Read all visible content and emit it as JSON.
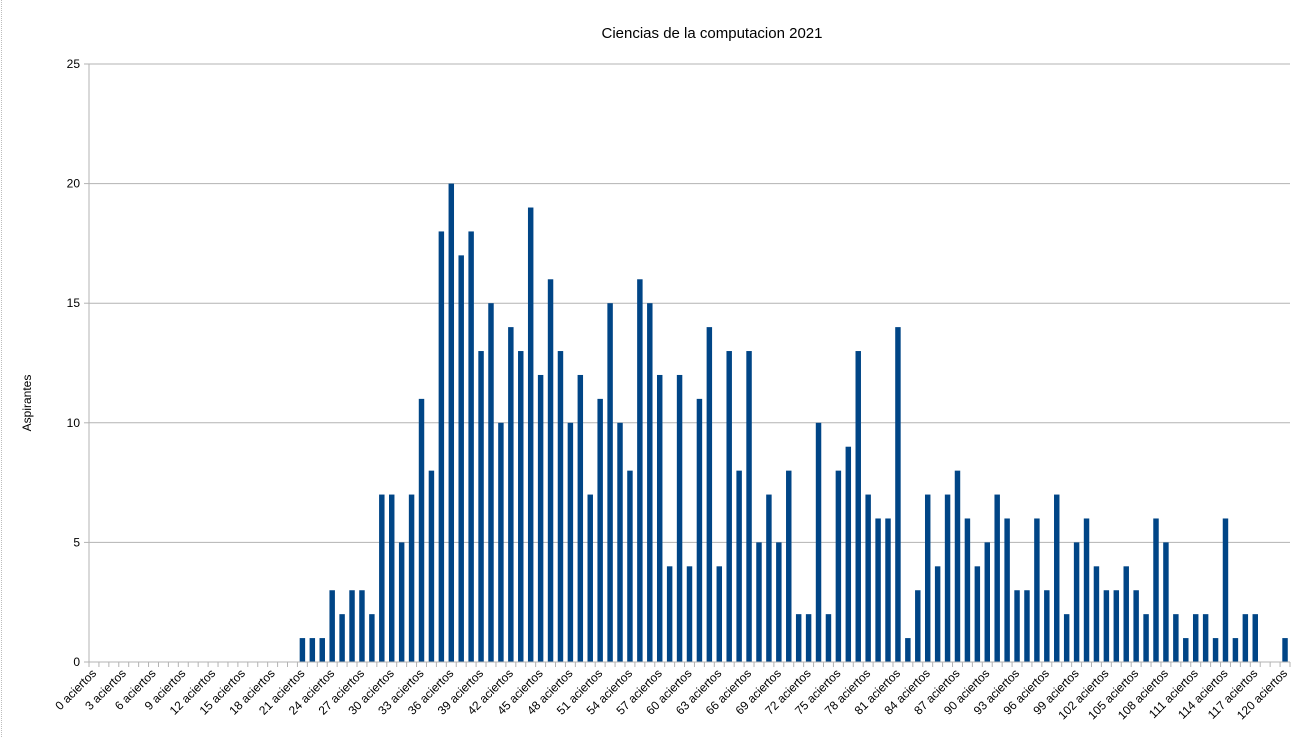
{
  "chart_data": {
    "type": "bar",
    "title": "Ciencias de la computacion 2021",
    "ylabel": "Aspirantes",
    "xlabel": "",
    "ylim": [
      0,
      25
    ],
    "yticks": [
      0,
      5,
      10,
      15,
      20,
      25
    ],
    "grid": true,
    "legend": "none",
    "bar_color": "#004586",
    "categories": [
      "0 aciertos",
      "1 aciertos",
      "2 aciertos",
      "3 aciertos",
      "4 aciertos",
      "5 aciertos",
      "6 aciertos",
      "7 aciertos",
      "8 aciertos",
      "9 aciertos",
      "10 aciertos",
      "11 aciertos",
      "12 aciertos",
      "13 aciertos",
      "14 aciertos",
      "15 aciertos",
      "16 aciertos",
      "17 aciertos",
      "18 aciertos",
      "19 aciertos",
      "20 aciertos",
      "21 aciertos",
      "22 aciertos",
      "23 aciertos",
      "24 aciertos",
      "25 aciertos",
      "26 aciertos",
      "27 aciertos",
      "28 aciertos",
      "29 aciertos",
      "30 aciertos",
      "31 aciertos",
      "32 aciertos",
      "33 aciertos",
      "34 aciertos",
      "35 aciertos",
      "36 aciertos",
      "37 aciertos",
      "38 aciertos",
      "39 aciertos",
      "40 aciertos",
      "41 aciertos",
      "42 aciertos",
      "43 aciertos",
      "44 aciertos",
      "45 aciertos",
      "46 aciertos",
      "47 aciertos",
      "48 aciertos",
      "49 aciertos",
      "50 aciertos",
      "51 aciertos",
      "52 aciertos",
      "53 aciertos",
      "54 aciertos",
      "55 aciertos",
      "56 aciertos",
      "57 aciertos",
      "58 aciertos",
      "59 aciertos",
      "60 aciertos",
      "61 aciertos",
      "62 aciertos",
      "63 aciertos",
      "64 aciertos",
      "65 aciertos",
      "66 aciertos",
      "67 aciertos",
      "68 aciertos",
      "69 aciertos",
      "70 aciertos",
      "71 aciertos",
      "72 aciertos",
      "73 aciertos",
      "74 aciertos",
      "75 aciertos",
      "76 aciertos",
      "77 aciertos",
      "78 aciertos",
      "79 aciertos",
      "80 aciertos",
      "81 aciertos",
      "82 aciertos",
      "83 aciertos",
      "84 aciertos",
      "85 aciertos",
      "86 aciertos",
      "87 aciertos",
      "88 aciertos",
      "89 aciertos",
      "90 aciertos",
      "91 aciertos",
      "92 aciertos",
      "93 aciertos",
      "94 aciertos",
      "95 aciertos",
      "96 aciertos",
      "97 aciertos",
      "98 aciertos",
      "99 aciertos",
      "100 aciertos",
      "101 aciertos",
      "102 aciertos",
      "103 aciertos",
      "104 aciertos",
      "105 aciertos",
      "106 aciertos",
      "107 aciertos",
      "108 aciertos",
      "109 aciertos",
      "110 aciertos",
      "111 aciertos",
      "112 aciertos",
      "113 aciertos",
      "114 aciertos",
      "115 aciertos",
      "116 aciertos",
      "117 aciertos",
      "118 aciertos",
      "119 aciertos",
      "120 aciertos"
    ],
    "tick_label_every": 3,
    "values": [
      0,
      0,
      0,
      0,
      0,
      0,
      0,
      0,
      0,
      0,
      0,
      0,
      0,
      0,
      0,
      0,
      0,
      0,
      0,
      0,
      0,
      1,
      1,
      1,
      3,
      2,
      3,
      3,
      2,
      7,
      7,
      5,
      7,
      11,
      8,
      18,
      20,
      17,
      18,
      13,
      15,
      10,
      14,
      13,
      19,
      12,
      16,
      13,
      10,
      12,
      7,
      11,
      15,
      10,
      8,
      16,
      15,
      12,
      4,
      12,
      4,
      11,
      14,
      4,
      13,
      8,
      13,
      5,
      7,
      5,
      8,
      2,
      2,
      10,
      2,
      8,
      9,
      13,
      7,
      6,
      6,
      14,
      1,
      3,
      7,
      4,
      7,
      8,
      6,
      4,
      5,
      7,
      6,
      3,
      3,
      6,
      3,
      7,
      2,
      5,
      6,
      4,
      3,
      3,
      4,
      3,
      2,
      6,
      5,
      2,
      1,
      2,
      2,
      1,
      6,
      1,
      2,
      2,
      0,
      0,
      1
    ]
  }
}
